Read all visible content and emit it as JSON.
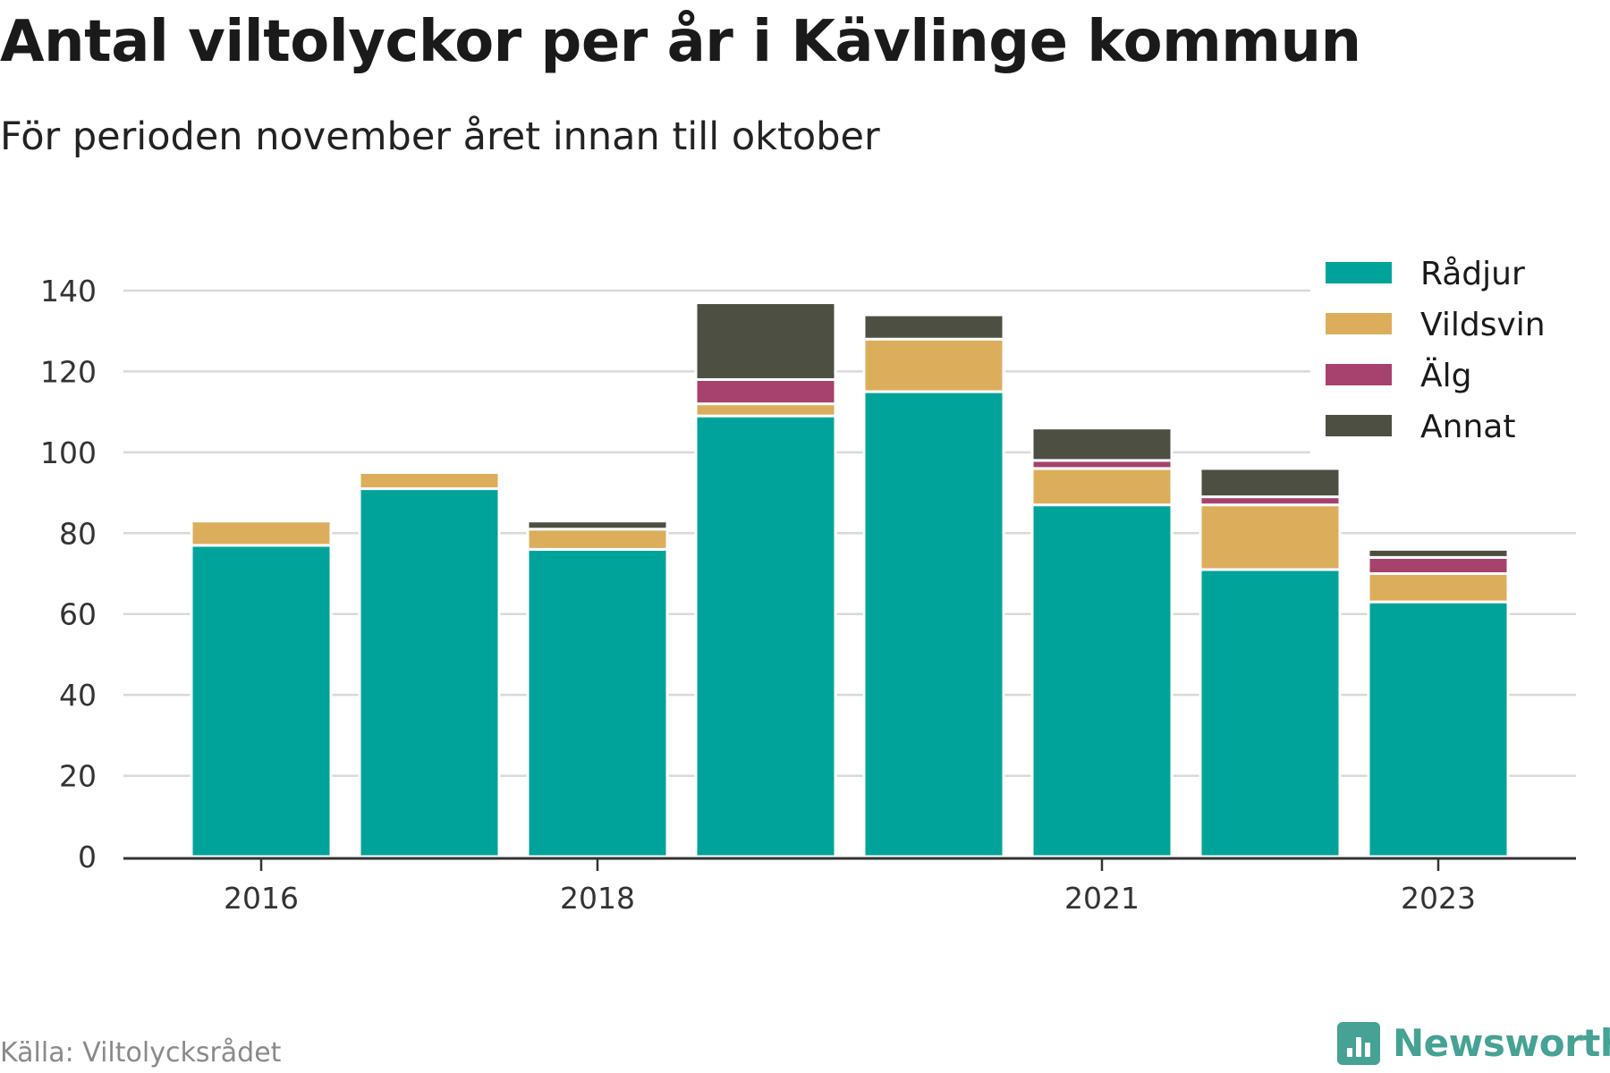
{
  "title": "Antal viltolyckor per år i Kävlinge kommun",
  "subtitle": "För perioden november året innan till oktober",
  "source": "Källa: Viltolycksrådet",
  "brand": "Newsworthy",
  "colors": {
    "Rådjur": "#00a39a",
    "Vildsvin": "#dcae5c",
    "Älg": "#a6426b",
    "Annat": "#4c4f42"
  },
  "chart_data": {
    "type": "bar",
    "stacked": true,
    "categories": [
      "2016",
      "2017",
      "2018",
      "2019",
      "2020",
      "2021",
      "2022",
      "2023"
    ],
    "x_tick_labels": [
      "2016",
      "",
      "2018",
      "",
      "",
      "2021",
      "",
      "2023"
    ],
    "series": [
      {
        "name": "Rådjur",
        "values": [
          77,
          91,
          76,
          109,
          115,
          87,
          71,
          63
        ]
      },
      {
        "name": "Vildsvin",
        "values": [
          6,
          4,
          5,
          3,
          13,
          9,
          16,
          7
        ]
      },
      {
        "name": "Älg",
        "values": [
          0,
          0,
          0,
          6,
          0,
          2,
          2,
          4
        ]
      },
      {
        "name": "Annat",
        "values": [
          0,
          0,
          2,
          19,
          6,
          8,
          7,
          2
        ]
      }
    ],
    "ylim": [
      0,
      140
    ],
    "yticks": [
      0,
      20,
      40,
      60,
      80,
      100,
      120,
      140
    ],
    "grid": true,
    "legend_position": "top-right"
  }
}
